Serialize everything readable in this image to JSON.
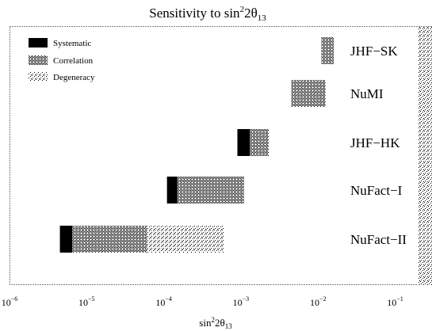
{
  "chart_data": {
    "type": "bar",
    "title": "Sensitivity to sin²2θ₁₃",
    "title_parts": {
      "main": "Sensitivity to sin",
      "sup": "2",
      "mid": "2θ",
      "sub": "13"
    },
    "xlabel": "sin²2θ₁₃",
    "xlabel_parts": {
      "main": "sin",
      "sup": "2",
      "mid": "2θ",
      "sub": "13"
    },
    "ylabel": "",
    "x_scale": "log",
    "xlim": [
      1e-06,
      0.3
    ],
    "x_ticks": [
      {
        "value": 1e-06,
        "base": "10",
        "exp": "−6"
      },
      {
        "value": 1e-05,
        "base": "10",
        "exp": "−5"
      },
      {
        "value": 0.0001,
        "base": "10",
        "exp": "−4"
      },
      {
        "value": 0.001,
        "base": "10",
        "exp": "−3"
      },
      {
        "value": 0.01,
        "base": "10",
        "exp": "−2"
      },
      {
        "value": 0.1,
        "base": "10",
        "exp": "−1"
      }
    ],
    "legend": {
      "placement": "top-left",
      "entries": [
        {
          "label": "Systematic",
          "pattern": "solid"
        },
        {
          "label": "Correlation",
          "pattern": "dense"
        },
        {
          "label": "Degeneracy",
          "pattern": "sparse"
        }
      ]
    },
    "excluded_region": {
      "from": 0.2,
      "to": 0.3,
      "pattern": "sparse"
    },
    "experiments": [
      {
        "name": "JHF−SK",
        "segments": [
          {
            "type": "Correlation",
            "from": 0.011,
            "to": 0.016
          }
        ]
      },
      {
        "name": "NuMI",
        "segments": [
          {
            "type": "Correlation",
            "from": 0.0045,
            "to": 0.0125
          }
        ]
      },
      {
        "name": "JHF−HK",
        "segments": [
          {
            "type": "Systematic",
            "from": 0.0009,
            "to": 0.0013
          },
          {
            "type": "Correlation",
            "from": 0.0013,
            "to": 0.0023
          }
        ]
      },
      {
        "name": "NuFact−I",
        "segments": [
          {
            "type": "Systematic",
            "from": 0.00011,
            "to": 0.00015
          },
          {
            "type": "Correlation",
            "from": 0.00015,
            "to": 0.0011
          }
        ]
      },
      {
        "name": "NuFact−II",
        "segments": [
          {
            "type": "Systematic",
            "from": 4.5e-06,
            "to": 6.5e-06
          },
          {
            "type": "Correlation",
            "from": 6.5e-06,
            "to": 6e-05
          },
          {
            "type": "Degeneracy",
            "from": 6e-05,
            "to": 0.0006
          }
        ]
      }
    ]
  }
}
